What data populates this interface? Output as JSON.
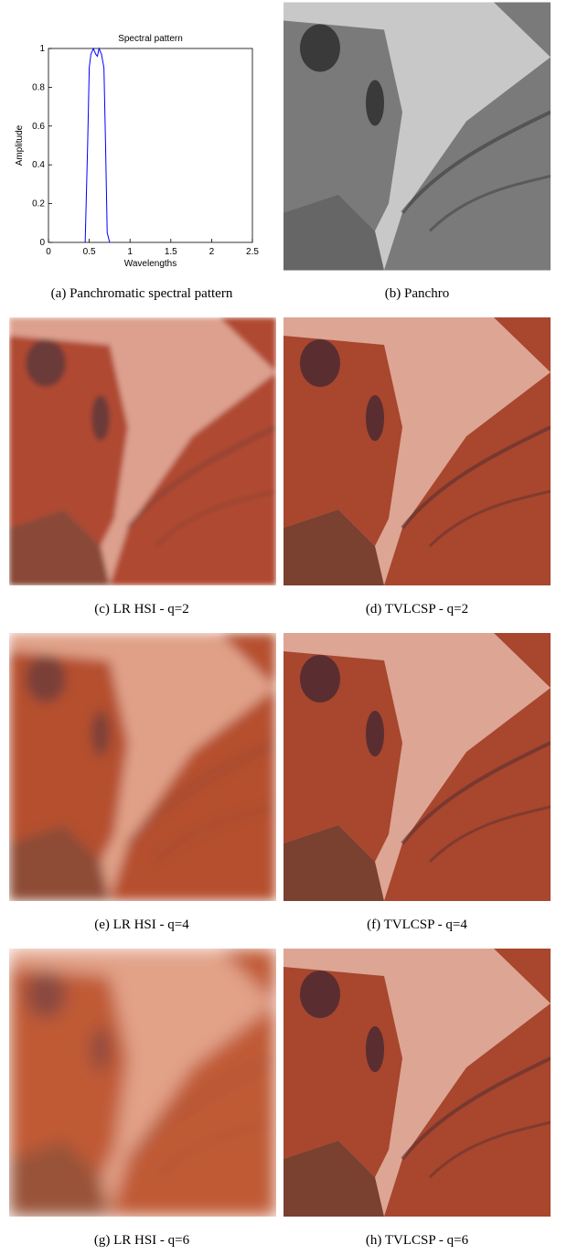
{
  "chart_data": {
    "type": "line",
    "title": "Spectral pattern",
    "xlabel": "Wavelengths",
    "ylabel": "Amplitude",
    "xlim": [
      0,
      2.5
    ],
    "ylim": [
      0,
      1
    ],
    "xticks": [
      0,
      0.5,
      1,
      1.5,
      2,
      2.5
    ],
    "yticks": [
      0,
      0.2,
      0.4,
      0.6,
      0.8,
      1
    ],
    "series": [
      {
        "color": "#0000ff",
        "x": [
          0.45,
          0.48,
          0.5,
          0.52,
          0.55,
          0.58,
          0.6,
          0.62,
          0.65,
          0.68,
          0.7,
          0.72,
          0.75
        ],
        "values": [
          0,
          0.5,
          0.9,
          0.97,
          1.0,
          0.97,
          0.96,
          1.0,
          0.97,
          0.9,
          0.5,
          0.05,
          0
        ]
      }
    ]
  },
  "panels": [
    {
      "caption": "(a)  Panchromatic spectral pattern"
    },
    {
      "caption": "(b)  Panchro"
    },
    {
      "caption": "(c)  LR HSI - q=2"
    },
    {
      "caption": "(d)  TVLCSP - q=2"
    },
    {
      "caption": "(e)  LR HSI - q=4"
    },
    {
      "caption": "(f)  TVLCSP - q=4"
    },
    {
      "caption": "(g)  LR HSI - q=6"
    },
    {
      "caption": "(h)  TVLCSP - q=6"
    }
  ]
}
